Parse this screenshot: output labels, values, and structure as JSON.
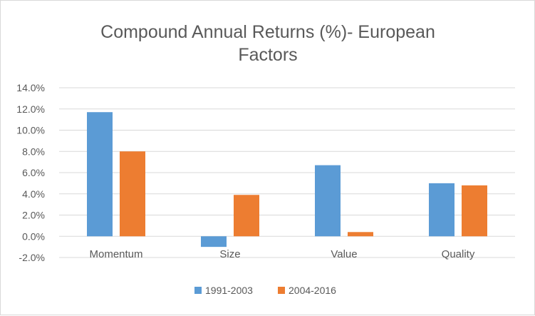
{
  "chart_data": {
    "type": "bar",
    "title_lines": [
      "Compound Annual Returns (%)- European",
      "Factors"
    ],
    "categories": [
      "Momentum",
      "Size",
      "Value",
      "Quality"
    ],
    "series": [
      {
        "name": "1991-2003",
        "color": "#5b9bd5",
        "values": [
          11.7,
          -1.0,
          6.7,
          5.0
        ]
      },
      {
        "name": "2004-2016",
        "color": "#ed7d31",
        "values": [
          8.0,
          3.9,
          0.4,
          4.8
        ]
      }
    ],
    "ylim": [
      -2.0,
      14.0
    ],
    "ytick_values": [
      14,
      12,
      10,
      8,
      6,
      4,
      2,
      0,
      -2
    ],
    "ytick_labels": [
      "14.0%",
      "12.0%",
      "10.0%",
      "8.0%",
      "6.0%",
      "4.0%",
      "2.0%",
      "0.0%",
      "-2.0%"
    ],
    "grid": true,
    "legend_position": "bottom"
  }
}
